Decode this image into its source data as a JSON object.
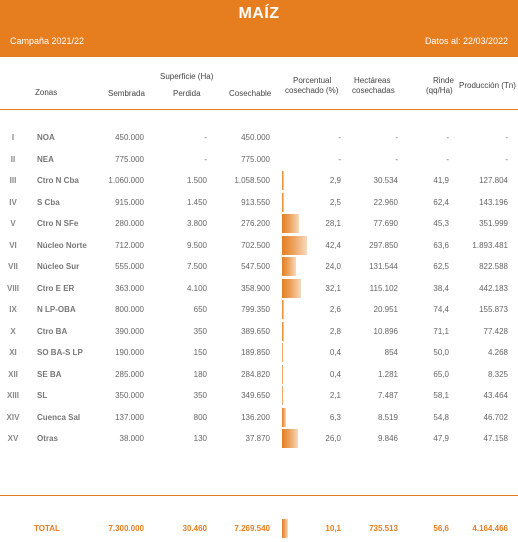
{
  "header": {
    "title": "MAÍZ",
    "campaign": "Campaña 2021/22",
    "date": "Datos al: 22/03/2022"
  },
  "columns": {
    "zonas": "Zonas",
    "sembrada": "Sembrada",
    "superficie_group": "Superficie (Ha)",
    "perdida": "Perdida",
    "cosechable": "Cosechable",
    "porcentual": "Porcentual",
    "porcentual2": "cosechado (%)",
    "hectareas": "Hectáreas",
    "hectareas2": "cosechadas",
    "rinde": "Rinde",
    "rinde2": "(qq/Ha)",
    "produccion": "Producción (Tn)"
  },
  "rows": [
    {
      "num": "I",
      "zona": "NOA",
      "sembrada": "450.000",
      "perdida": "-",
      "cosechable": "450.000",
      "porcentual": "-",
      "pct": 0,
      "hectareas": "-",
      "rinde": "-",
      "produccion": "-"
    },
    {
      "num": "II",
      "zona": "NEA",
      "sembrada": "775.000",
      "perdida": "-",
      "cosechable": "775.000",
      "porcentual": "-",
      "pct": 0,
      "hectareas": "-",
      "rinde": "-",
      "produccion": "-"
    },
    {
      "num": "III",
      "zona": "Ctro N Cba",
      "sembrada": "1.060.000",
      "perdida": "1.500",
      "cosechable": "1.058.500",
      "porcentual": "2,9",
      "pct": 2.9,
      "hectareas": "30.534",
      "rinde": "41,9",
      "produccion": "127.804"
    },
    {
      "num": "IV",
      "zona": "S Cba",
      "sembrada": "915.000",
      "perdida": "1.450",
      "cosechable": "913.550",
      "porcentual": "2,5",
      "pct": 2.5,
      "hectareas": "22.960",
      "rinde": "62,4",
      "produccion": "143.196"
    },
    {
      "num": "V",
      "zona": "Ctro N SFe",
      "sembrada": "280.000",
      "perdida": "3.800",
      "cosechable": "276.200",
      "porcentual": "28,1",
      "pct": 28.1,
      "hectareas": "77.690",
      "rinde": "45,3",
      "produccion": "351.999"
    },
    {
      "num": "VI",
      "zona": "Núcleo Norte",
      "sembrada": "712.000",
      "perdida": "9.500",
      "cosechable": "702.500",
      "porcentual": "42,4",
      "pct": 42.4,
      "hectareas": "297.850",
      "rinde": "63,6",
      "produccion": "1.893.481"
    },
    {
      "num": "VII",
      "zona": "Núcleo Sur",
      "sembrada": "555.000",
      "perdida": "7.500",
      "cosechable": "547.500",
      "porcentual": "24,0",
      "pct": 24.0,
      "hectareas": "131.544",
      "rinde": "62,5",
      "produccion": "822.588"
    },
    {
      "num": "VIII",
      "zona": "Ctro E ER",
      "sembrada": "363.000",
      "perdida": "4.100",
      "cosechable": "358.900",
      "porcentual": "32,1",
      "pct": 32.1,
      "hectareas": "115.102",
      "rinde": "38,4",
      "produccion": "442.183"
    },
    {
      "num": "IX",
      "zona": "N LP-OBA",
      "sembrada": "800.000",
      "perdida": "650",
      "cosechable": "799.350",
      "porcentual": "2,6",
      "pct": 2.6,
      "hectareas": "20.951",
      "rinde": "74,4",
      "produccion": "155.873"
    },
    {
      "num": "X",
      "zona": "Ctro BA",
      "sembrada": "390.000",
      "perdida": "350",
      "cosechable": "389.650",
      "porcentual": "2,8",
      "pct": 2.8,
      "hectareas": "10.896",
      "rinde": "71,1",
      "produccion": "77.428"
    },
    {
      "num": "XI",
      "zona": "SO BA-S LP",
      "sembrada": "190.000",
      "perdida": "150",
      "cosechable": "189.850",
      "porcentual": "0,4",
      "pct": 0.4,
      "hectareas": "854",
      "rinde": "50,0",
      "produccion": "4.268"
    },
    {
      "num": "XII",
      "zona": "SE BA",
      "sembrada": "285.000",
      "perdida": "180",
      "cosechable": "284.820",
      "porcentual": "0,4",
      "pct": 0.4,
      "hectareas": "1.281",
      "rinde": "65,0",
      "produccion": "8.325"
    },
    {
      "num": "XIII",
      "zona": "SL",
      "sembrada": "350.000",
      "perdida": "350",
      "cosechable": "349.650",
      "porcentual": "2,1",
      "pct": 2.1,
      "hectareas": "7.487",
      "rinde": "58,1",
      "produccion": "43.464"
    },
    {
      "num": "XIV",
      "zona": "Cuenca Sal",
      "sembrada": "137.000",
      "perdida": "800",
      "cosechable": "136.200",
      "porcentual": "6,3",
      "pct": 6.3,
      "hectareas": "8.519",
      "rinde": "54,8",
      "produccion": "46.702"
    },
    {
      "num": "XV",
      "zona": "Otras",
      "sembrada": "38.000",
      "perdida": "130",
      "cosechable": "37.870",
      "porcentual": "26,0",
      "pct": 26.0,
      "hectareas": "9.846",
      "rinde": "47,9",
      "produccion": "47.158"
    }
  ],
  "total": {
    "label": "TOTAL",
    "sembrada": "7.300.000",
    "perdida": "30.460",
    "cosechable": "7.269.540",
    "porcentual": "10,1",
    "pct": 10.1,
    "hectareas": "735.513",
    "rinde": "56,6",
    "produccion": "4.164.466"
  }
}
